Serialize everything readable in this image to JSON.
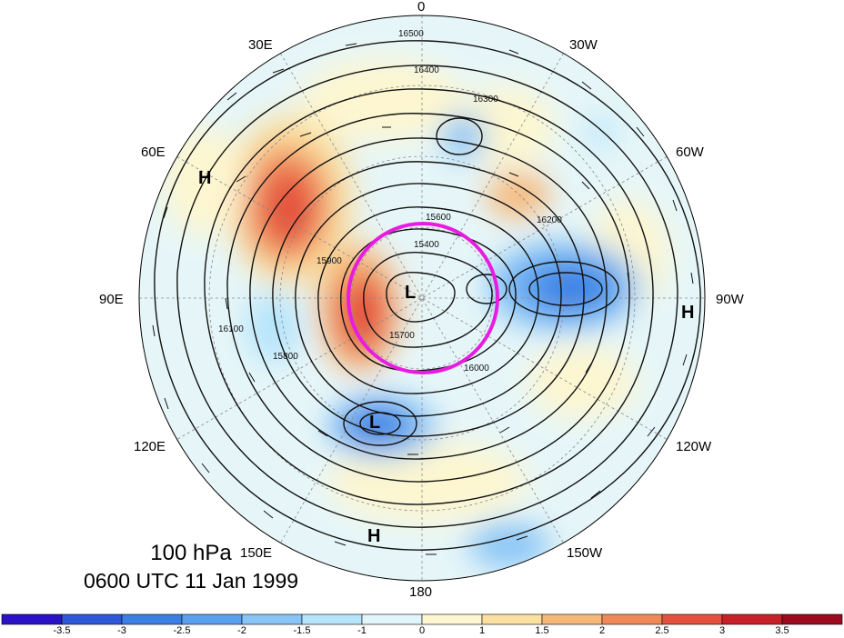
{
  "caption": {
    "level": "100 hPa",
    "time": "0600 UTC 11 Jan 1999"
  },
  "longitude_labels": [
    "0",
    "30W",
    "60W",
    "90W",
    "120W",
    "150W",
    "180",
    "150E",
    "120E",
    "90E",
    "60E",
    "30E"
  ],
  "pressure_systems": [
    {
      "id": "low-center",
      "label": "L"
    },
    {
      "id": "low-pacific",
      "label": "L"
    },
    {
      "id": "high-asia",
      "label": "H"
    },
    {
      "id": "high-pacific",
      "label": "H"
    },
    {
      "id": "high-america",
      "label": "H"
    }
  ],
  "contour_labels": [
    "16500",
    "16400",
    "16300",
    "16200",
    "16100",
    "16000",
    "15900",
    "15800",
    "15700",
    "15600",
    "15400"
  ],
  "colorbar": {
    "ticks": [
      "-3.5",
      "-3",
      "-2.5",
      "-2",
      "-1.5",
      "-1",
      "0",
      "1",
      "1.5",
      "2",
      "2.5",
      "3",
      "3.5"
    ],
    "colors": [
      "#2b12c8",
      "#2e58d8",
      "#3b7fe4",
      "#5aa0ee",
      "#88c4f6",
      "#b6e4fb",
      "#e0f6fb",
      "#fdf6d0",
      "#fbe0a0",
      "#f6b778",
      "#ef8a58",
      "#e4503c",
      "#c82028",
      "#9b0a1f"
    ]
  },
  "colors": {
    "highlight_circle": "#e81ce0",
    "contour": "#111111"
  }
}
